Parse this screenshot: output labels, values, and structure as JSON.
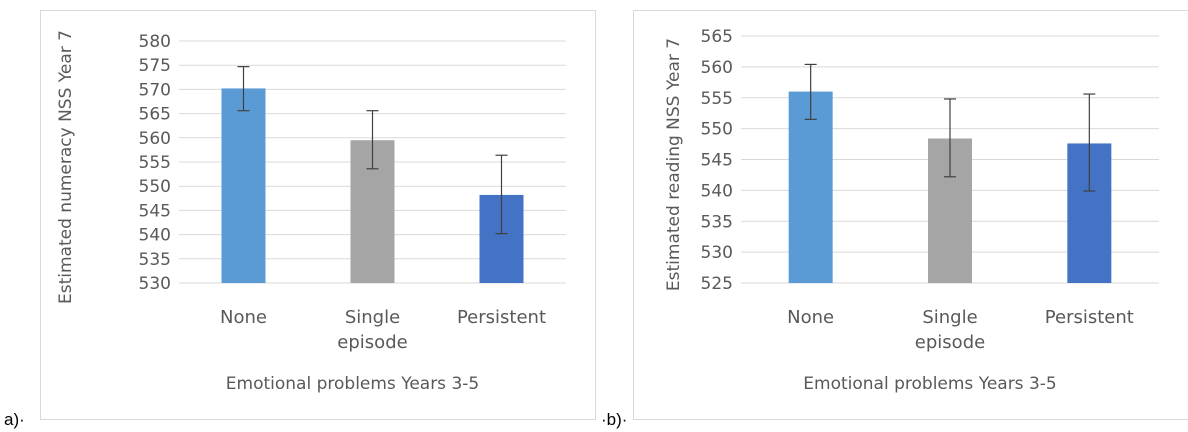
{
  "panels": [
    {
      "label": "a)·"
    },
    {
      "label": "·b)·"
    }
  ],
  "colors": {
    "none": "#5b9bd5",
    "single": "#a5a5a5",
    "persistent": "#4472c4",
    "grid": "#d9d9d9",
    "text": "#595959",
    "error": "#404040"
  },
  "chart_data": [
    {
      "type": "bar",
      "title": "",
      "xlabel": "Emotional problems Years 3-5",
      "ylabel": "Estimated numeracy NSS Year 7",
      "categories": [
        "None",
        "Single episode",
        "Persistent"
      ],
      "category_lines": [
        [
          "None"
        ],
        [
          "Single",
          "episode"
        ],
        [
          "Persistent"
        ]
      ],
      "values": [
        570.2,
        559.5,
        548.2
      ],
      "error_upper": [
        574.7,
        565.6,
        556.4
      ],
      "error_lower": [
        565.6,
        553.6,
        540.2
      ],
      "ylim": [
        530,
        580
      ],
      "yticks": [
        530,
        535,
        540,
        545,
        550,
        555,
        560,
        565,
        570,
        575,
        580
      ],
      "grid": true
    },
    {
      "type": "bar",
      "title": "",
      "xlabel": "Emotional problems Years 3-5",
      "ylabel": "Estimated reading NSS Year 7",
      "categories": [
        "None",
        "Single episode",
        "Persistent"
      ],
      "category_lines": [
        [
          "None"
        ],
        [
          "Single",
          "episode"
        ],
        [
          "Persistent"
        ]
      ],
      "values": [
        556.0,
        548.4,
        547.6
      ],
      "error_upper": [
        560.4,
        554.8,
        555.6
      ],
      "error_lower": [
        551.5,
        542.2,
        539.9
      ],
      "ylim": [
        525,
        565
      ],
      "yticks": [
        525,
        530,
        535,
        540,
        545,
        550,
        555,
        560,
        565
      ],
      "grid": true
    }
  ]
}
